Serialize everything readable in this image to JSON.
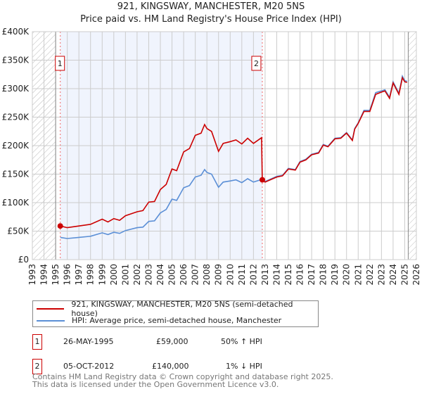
{
  "chart_data": {
    "type": "line",
    "title": "921, KINGSWAY, MANCHESTER, M20 5NS",
    "subtitle": "Price paid vs. HM Land Registry's House Price Index (HPI)",
    "xlim": [
      1993,
      2026
    ],
    "ylim": [
      0,
      400000
    ],
    "x_ticks": [
      "1993",
      "1994",
      "1995",
      "1996",
      "1997",
      "1998",
      "1999",
      "2000",
      "2001",
      "2002",
      "2003",
      "2004",
      "2005",
      "2006",
      "2007",
      "2008",
      "2009",
      "2010",
      "2011",
      "2012",
      "2013",
      "2014",
      "2015",
      "2016",
      "2017",
      "2018",
      "2019",
      "2020",
      "2021",
      "2022",
      "2023",
      "2024",
      "2025",
      "2026"
    ],
    "y_ticks": [
      {
        "v": 0,
        "label": "£0"
      },
      {
        "v": 50000,
        "label": "£50K"
      },
      {
        "v": 100000,
        "label": "£100K"
      },
      {
        "v": 150000,
        "label": "£150K"
      },
      {
        "v": 200000,
        "label": "£200K"
      },
      {
        "v": 250000,
        "label": "£250K"
      },
      {
        "v": 300000,
        "label": "£300K"
      },
      {
        "v": 350000,
        "label": "£350K"
      },
      {
        "v": 400000,
        "label": "£400K"
      }
    ],
    "grid": true,
    "shaded_range": [
      1995.4,
      2012.76
    ],
    "hatched_before": 1995.0,
    "hatched_after": 2025.3,
    "series": [
      {
        "name": "921, KINGSWAY, MANCHESTER, M20 5NS (semi-detached house)",
        "color": "#cc0000",
        "x": [
          1995.4,
          1996,
          1997,
          1998,
          1999,
          1999.5,
          2000,
          2000.5,
          2001,
          2002,
          2002.5,
          2003,
          2003.5,
          2004,
          2004.5,
          2005,
          2005.4,
          2006,
          2006.5,
          2007,
          2007.5,
          2007.8,
          2008,
          2008.4,
          2009,
          2009.4,
          2010,
          2010.5,
          2011,
          2011.5,
          2012,
          2012.7,
          2012.76,
          2013,
          2014,
          2014.5,
          2015,
          2015.6,
          2016,
          2016.5,
          2017,
          2017.6,
          2018,
          2018.4,
          2019,
          2019.5,
          2020,
          2020.5,
          2020.7,
          2021,
          2021.5,
          2022,
          2022.5,
          2023,
          2023.3,
          2023.7,
          2024,
          2024.5,
          2024.8,
          2025,
          2025.2
        ],
        "y": [
          59,
          56,
          59,
          62,
          71,
          66,
          72,
          69,
          77,
          84,
          86,
          101,
          102,
          123,
          132,
          159,
          156,
          189,
          195,
          218,
          222,
          237,
          230,
          225,
          190,
          204,
          207,
          210,
          203,
          213,
          204,
          214,
          140,
          136,
          145,
          147,
          159,
          157,
          171,
          175,
          184,
          187,
          201,
          198,
          212,
          213,
          222,
          209,
          229,
          239,
          260,
          260,
          290,
          294,
          296,
          283,
          310,
          290,
          319,
          312,
          311
        ]
      },
      {
        "name": "HPI: Average price, semi-detached house, Manchester",
        "color": "#5b8fd6",
        "x": [
          1995.4,
          1996,
          1997,
          1998,
          1999,
          1999.5,
          2000,
          2000.5,
          2001,
          2002,
          2002.5,
          2003,
          2003.5,
          2004,
          2004.5,
          2005,
          2005.4,
          2006,
          2006.5,
          2007,
          2007.5,
          2007.8,
          2008,
          2008.4,
          2009,
          2009.4,
          2010,
          2010.5,
          2011,
          2011.5,
          2012,
          2012.76,
          2013,
          2014,
          2014.5,
          2015,
          2015.6,
          2016,
          2016.5,
          2017,
          2017.6,
          2018,
          2018.4,
          2019,
          2019.5,
          2020,
          2020.5,
          2020.7,
          2021,
          2021.5,
          2022,
          2022.5,
          2023,
          2023.3,
          2023.7,
          2024,
          2024.5,
          2024.8,
          2025,
          2025.2
        ],
        "y": [
          39,
          37,
          39,
          41,
          47,
          44,
          48,
          46,
          51,
          56,
          57,
          67,
          68,
          82,
          88,
          106,
          104,
          126,
          130,
          145,
          148,
          158,
          153,
          150,
          127,
          136,
          138,
          140,
          135,
          142,
          136,
          141,
          137,
          146,
          148,
          160,
          158,
          172,
          176,
          185,
          188,
          202,
          199,
          213,
          214,
          223,
          210,
          230,
          240,
          262,
          262,
          293,
          296,
          298,
          285,
          312,
          292,
          322,
          314,
          313
        ]
      }
    ],
    "y_units": "thousands GBP",
    "markers": [
      {
        "label": "1",
        "x": 1995.4,
        "y": 59
      },
      {
        "label": "2",
        "x": 2012.76,
        "y": 140
      }
    ]
  },
  "legend": {
    "red": "921, KINGSWAY, MANCHESTER, M20 5NS (semi-detached house)",
    "blue": "HPI: Average price, semi-detached house, Manchester"
  },
  "transactions": [
    {
      "num": "1",
      "date": "26-MAY-1995",
      "price": "£59,000",
      "hpi": "50% ↑ HPI"
    },
    {
      "num": "2",
      "date": "05-OCT-2012",
      "price": "£140,000",
      "hpi": "1% ↓ HPI"
    }
  ],
  "footer": {
    "line1": "Contains HM Land Registry data © Crown copyright and database right 2025.",
    "line2": "This data is licensed under the Open Government Licence v3.0."
  }
}
